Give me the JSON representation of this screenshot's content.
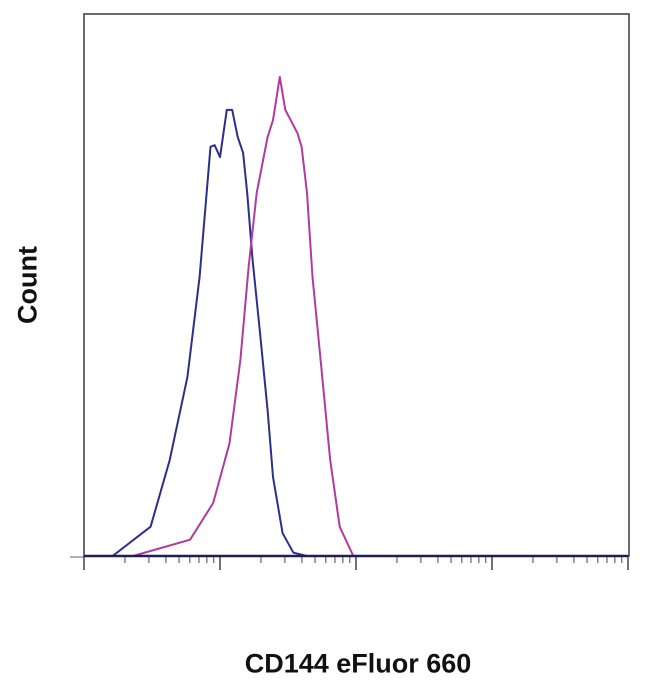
{
  "chart_data": {
    "type": "line",
    "title": "",
    "xlabel": "CD144 eFluor 660",
    "ylabel": "Count",
    "x_scale": "log (4 decades, no tick labels)",
    "xlim": [
      0,
      4
    ],
    "ylim": [
      0,
      100
    ],
    "grid": false,
    "legend": "none",
    "series": [
      {
        "color": "#2b2f8c",
        "x": [
          0,
          0.21,
          0.49,
          0.63,
          0.76,
          0.85,
          0.93,
          0.96,
          1.0,
          1.05,
          1.09,
          1.13,
          1.17,
          1.2,
          1.24,
          1.29,
          1.35,
          1.39,
          1.46,
          1.54,
          1.64,
          4
        ],
        "y": [
          0,
          0,
          5.4,
          17.7,
          33.0,
          51.5,
          75.5,
          75.8,
          73.6,
          82.3,
          82.3,
          77.3,
          74.4,
          67.0,
          54.6,
          42.3,
          26.9,
          14.6,
          4.2,
          0.6,
          0,
          0
        ]
      },
      {
        "color": "#b23a9c",
        "x": [
          0,
          0.36,
          0.78,
          0.95,
          1.07,
          1.15,
          1.21,
          1.27,
          1.35,
          1.39,
          1.44,
          1.48,
          1.57,
          1.6,
          1.64,
          1.68,
          1.74,
          1.81,
          1.88,
          1.98,
          4
        ],
        "y": [
          0,
          0,
          3.0,
          9.8,
          20.8,
          36.2,
          53.3,
          67.0,
          77.3,
          80.4,
          88.4,
          82.3,
          78.0,
          75.5,
          67.0,
          51.5,
          36.2,
          17.7,
          5.4,
          0,
          0
        ]
      }
    ]
  }
}
